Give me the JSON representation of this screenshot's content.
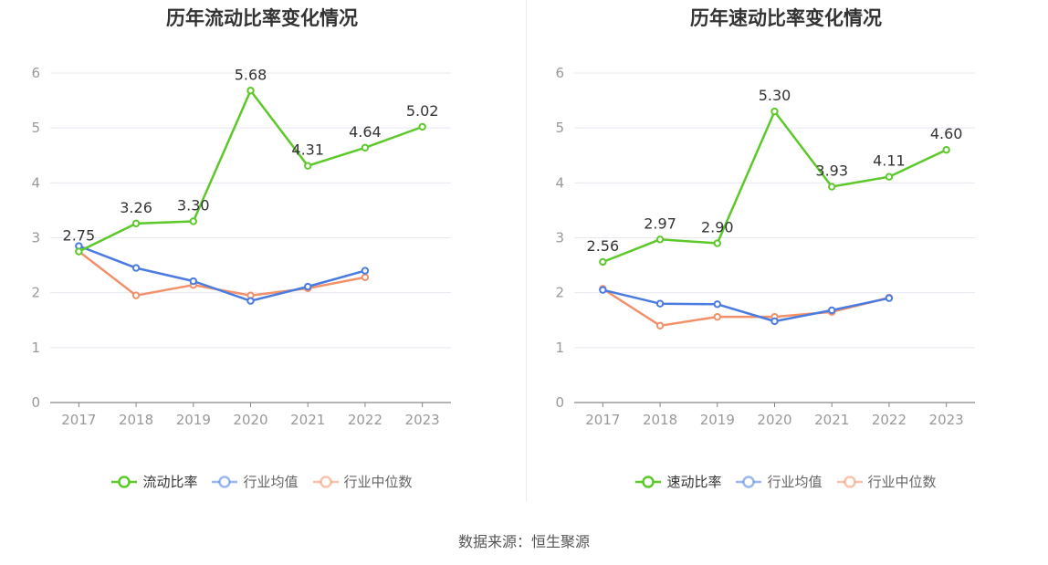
{
  "source": "数据来源：恒生聚源",
  "colors": {
    "main": "#5cc82a",
    "avg": "#4a7be0",
    "median": "#f29069"
  },
  "chart_data": [
    {
      "type": "line",
      "title": "历年流动比率变化情况",
      "categories": [
        "2017",
        "2018",
        "2019",
        "2020",
        "2021",
        "2022",
        "2023"
      ],
      "ylim": [
        0,
        6
      ],
      "yticks": [
        "0",
        "1",
        "2",
        "3",
        "4",
        "5",
        "6"
      ],
      "grid": true,
      "legend": "bottom-center",
      "series": [
        {
          "name": "流动比率",
          "color": "#5cc82a",
          "values": [
            2.75,
            3.26,
            3.3,
            5.68,
            4.31,
            4.64,
            5.02
          ],
          "labels": [
            "2.75",
            "3.26",
            "3.30",
            "5.68",
            "4.31",
            "4.64",
            "5.02"
          ]
        },
        {
          "name": "行业均值",
          "color": "#4a7be0",
          "values": [
            2.85,
            2.45,
            2.21,
            1.85,
            2.11,
            2.4,
            null
          ]
        },
        {
          "name": "行业中位数",
          "color": "#f29069",
          "values": [
            2.75,
            1.95,
            2.14,
            1.95,
            2.08,
            2.28,
            null
          ]
        }
      ]
    },
    {
      "type": "line",
      "title": "历年速动比率变化情况",
      "categories": [
        "2017",
        "2018",
        "2019",
        "2020",
        "2021",
        "2022",
        "2023"
      ],
      "ylim": [
        0,
        6
      ],
      "yticks": [
        "0",
        "1",
        "2",
        "3",
        "4",
        "5",
        "6"
      ],
      "grid": true,
      "legend": "bottom-center",
      "series": [
        {
          "name": "速动比率",
          "color": "#5cc82a",
          "values": [
            2.56,
            2.97,
            2.9,
            5.3,
            3.93,
            4.11,
            4.6
          ],
          "labels": [
            "2.56",
            "2.97",
            "2.90",
            "5.30",
            "3.93",
            "4.11",
            "4.60"
          ]
        },
        {
          "name": "行业均值",
          "color": "#4a7be0",
          "values": [
            2.05,
            1.8,
            1.79,
            1.48,
            1.68,
            1.9,
            null
          ]
        },
        {
          "name": "行业中位数",
          "color": "#f29069",
          "values": [
            2.07,
            1.4,
            1.56,
            1.56,
            1.65,
            1.91,
            null
          ]
        }
      ]
    }
  ]
}
